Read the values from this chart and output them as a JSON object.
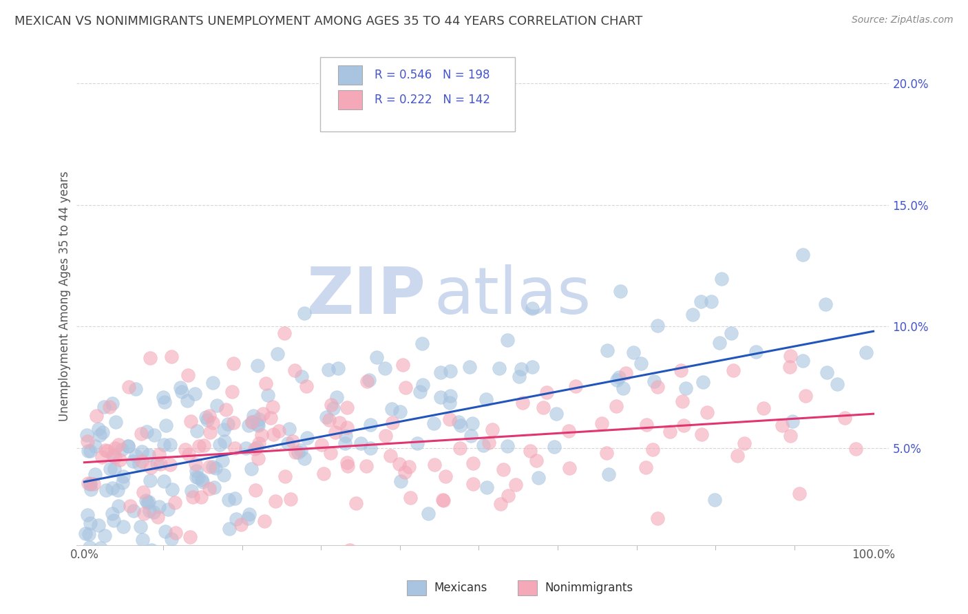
{
  "title": "MEXICAN VS NONIMMIGRANTS UNEMPLOYMENT AMONG AGES 35 TO 44 YEARS CORRELATION CHART",
  "source": "Source: ZipAtlas.com",
  "ylabel": "Unemployment Among Ages 35 to 44 years",
  "x_tick_positions": [
    0.0,
    1.0
  ],
  "x_tick_labels": [
    "0.0%",
    "100.0%"
  ],
  "y_ticks": [
    0.05,
    0.1,
    0.15,
    0.2
  ],
  "y_tick_labels": [
    "5.0%",
    "10.0%",
    "15.0%",
    "20.0%"
  ],
  "ylim": [
    0.01,
    0.215
  ],
  "xlim": [
    -0.01,
    1.02
  ],
  "mexican_R": 0.546,
  "mexican_N": 198,
  "nonimmigrant_R": 0.222,
  "nonimmigrant_N": 142,
  "mexican_color": "#a8c4e0",
  "nonimmigrant_color": "#f4a8b8",
  "mexican_line_color": "#2255bb",
  "nonimmigrant_line_color": "#e03570",
  "legend_label_mexicans": "Mexicans",
  "legend_label_nonimmigrants": "Nonimmigrants",
  "background_color": "#ffffff",
  "grid_color": "#cccccc",
  "title_color": "#404040",
  "label_color": "#4455cc",
  "watermark_zip": "ZIP",
  "watermark_atlas": "atlas",
  "watermark_color": "#ccd8ee",
  "mexican_slope": 0.062,
  "mexican_intercept": 0.036,
  "nonimmigrant_slope": 0.02,
  "nonimmigrant_intercept": 0.044
}
